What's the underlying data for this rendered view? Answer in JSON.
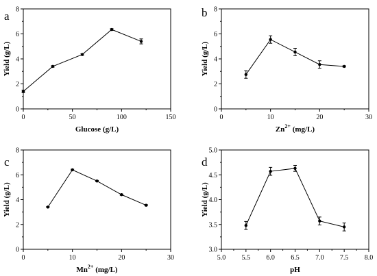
{
  "chart_data": [
    {
      "panel": "a",
      "type": "line",
      "xlabel": "Glucose (g/L)",
      "ylabel": "Yield (g/L)",
      "xlim": [
        0,
        150
      ],
      "ylim": [
        0,
        8
      ],
      "xticks": [
        0,
        50,
        100,
        150
      ],
      "yticks": [
        0,
        2,
        4,
        6,
        8
      ],
      "x": [
        0,
        30,
        60,
        90,
        120
      ],
      "values": [
        1.4,
        3.4,
        4.35,
        6.35,
        5.4
      ],
      "error": [
        0.1,
        0.06,
        0.06,
        0.07,
        0.2
      ]
    },
    {
      "panel": "b",
      "type": "line",
      "xlabel": "Zn",
      "xlabel_sup": "2+",
      "xlabel_suffix": " (mg/L)",
      "ylabel": "Yield (g/L)",
      "xlim": [
        0,
        30
      ],
      "ylim": [
        0,
        8
      ],
      "xticks": [
        0,
        10,
        20,
        30
      ],
      "yticks": [
        0,
        2,
        4,
        6,
        8
      ],
      "x": [
        5,
        10,
        15,
        20,
        25
      ],
      "values": [
        2.75,
        5.55,
        4.55,
        3.55,
        3.4
      ],
      "error": [
        0.3,
        0.3,
        0.3,
        0.3,
        0.05
      ]
    },
    {
      "panel": "c",
      "type": "line",
      "xlabel": "Mn",
      "xlabel_sup": "2+",
      "xlabel_suffix": " (mg/L)",
      "ylabel": "Yield (g/L)",
      "xlim": [
        0,
        30
      ],
      "ylim": [
        0,
        8
      ],
      "xticks": [
        0,
        10,
        20,
        30
      ],
      "yticks": [
        0,
        2,
        4,
        6,
        8
      ],
      "x": [
        5,
        10,
        15,
        20,
        25
      ],
      "values": [
        3.4,
        6.4,
        5.5,
        4.4,
        3.55
      ],
      "error": [
        0.04,
        0.05,
        0.05,
        0.05,
        0.05
      ]
    },
    {
      "panel": "d",
      "type": "line",
      "xlabel": "pH",
      "ylabel": "Yield (g/L)",
      "xlim": [
        5.0,
        8.0
      ],
      "ylim": [
        3.0,
        5.0
      ],
      "xticks": [
        "5.0",
        "5.5",
        "6.0",
        "6.5",
        "7.0",
        "7.5",
        "8.0"
      ],
      "yticks": [
        "3.0",
        "3.5",
        "4.0",
        "4.5",
        "5.0"
      ],
      "x": [
        5.5,
        6.0,
        6.5,
        7.0,
        7.5
      ],
      "values": [
        3.48,
        4.57,
        4.63,
        3.57,
        3.45
      ],
      "error": [
        0.08,
        0.08,
        0.06,
        0.08,
        0.08
      ]
    }
  ]
}
